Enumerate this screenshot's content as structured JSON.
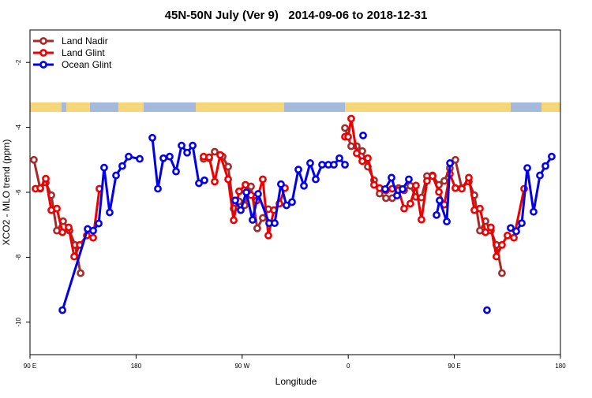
{
  "chart_data": {
    "type": "line",
    "title": "45N-50N July (Ver 9)   2014-09-06 to 2018-12-31",
    "x_label": "Longitude",
    "y_label": "XCO2 - MLO trend (ppm)",
    "xlim": [
      90,
      540
    ],
    "ylim": [
      -11,
      -1
    ],
    "xticks": [
      {
        "value": 90,
        "label": "90 E"
      },
      180,
      {
        "value": 270,
        "label": "90 W"
      },
      {
        "value": 360,
        "label": "0"
      },
      {
        "value": 450,
        "label": "90 E"
      },
      {
        "value": 540,
        "label": "180"
      }
    ],
    "yticks": [
      -10,
      -8,
      -6,
      -4,
      -2
    ],
    "legend": "top-left",
    "series": [
      {
        "name": "Land Nadir",
        "color": "#a52a2a",
        "x": [
          93.3,
          98.7,
          103.4,
          108.1,
          112.8,
          118.1,
          123.5,
          128.2,
          132.9,
          null,
          237.3,
          242.0,
          246.7,
          253.4,
          258.1,
          262.8,
          267.4,
          272.1,
          277.5,
          282.8,
          287.5,
          292.2,
          null,
          357.2,
          362.5,
          367.2,
          371.9,
          376.6,
          381.9,
          386.6,
          392.0,
          397.3,
          402.7,
          407.4,
          412.7,
          417.4,
          422.1,
          426.8,
          431.5,
          436.9,
          441.5,
          446.2,
          450.9,
          456.3,
          462.3,
          467.0,
          471.7,
          476.4,
          481.0,
          485.7,
          490.4
        ],
        "values": [
          -5.0,
          -5.89,
          -5.7,
          -6.09,
          -7.18,
          -6.89,
          -7.18,
          -7.62,
          -8.49,
          null,
          -4.97,
          -4.95,
          -4.75,
          -4.9,
          -5.21,
          -6.5,
          -6.28,
          -6.4,
          -5.82,
          -7.11,
          -6.79,
          -6.52,
          null,
          -4.02,
          -4.58,
          -4.58,
          -4.73,
          -5.21,
          -5.63,
          -6.04,
          -6.18,
          -6.18,
          -5.87,
          -5.94,
          -5.8,
          -6.14,
          -6.16,
          -5.5,
          -5.48,
          -5.77,
          -5.65,
          -5.26,
          -5.0,
          -5.87,
          -5.67,
          -6.09,
          -7.18,
          -6.89,
          -7.18,
          -7.62,
          -8.49
        ]
      },
      {
        "name": "Land Glint",
        "color": "#ee0000",
        "x": [
          94.7,
          98.7,
          103.4,
          108.1,
          112.8,
          117.5,
          122.8,
          127.5,
          132.2,
          138.2,
          143.6,
          148.9,
          null,
          237.3,
          242.0,
          246.7,
          251.4,
          258.1,
          262.8,
          267.4,
          272.8,
          277.5,
          282.2,
          287.5,
          292.2,
          296.9,
          301.6,
          306.3,
          null,
          357.2,
          359.9,
          362.5,
          367.2,
          371.9,
          376.6,
          381.9,
          386.6,
          392.0,
          397.3,
          402.7,
          407.4,
          412.7,
          417.4,
          422.1,
          426.8,
          431.5,
          436.9,
          441.5,
          446.2,
          450.9,
          456.3,
          462.3,
          467.0,
          471.7,
          476.4,
          481.0,
          485.7,
          490.4,
          495.1,
          500.5,
          509.2
        ],
        "values": [
          -5.89,
          -5.87,
          -5.58,
          -6.55,
          -6.5,
          -7.23,
          -7.08,
          -7.98,
          -7.62,
          -7.33,
          -7.4,
          -5.89,
          null,
          -4.9,
          -4.92,
          -5.67,
          -4.85,
          -5.6,
          -6.86,
          -5.97,
          -5.77,
          -6.09,
          -6.26,
          -5.6,
          -7.33,
          -6.55,
          -6.35,
          -5.87,
          null,
          -4.29,
          -4.29,
          -3.73,
          -4.8,
          -5.04,
          -4.95,
          -5.77,
          -5.87,
          -5.94,
          -5.89,
          -5.94,
          -6.5,
          -6.35,
          -5.79,
          -6.84,
          -5.65,
          -5.5,
          -5.99,
          -6.38,
          -5.43,
          -5.87,
          -5.89,
          -5.55,
          -6.55,
          -6.5,
          -7.23,
          -7.08,
          -7.98,
          -7.62,
          -7.33,
          -7.4,
          -5.89
        ]
      },
      {
        "name": "Ocean Glint",
        "color": "#0000ee",
        "x": [
          117.5,
          138.9,
          143.6,
          148.3,
          152.9,
          157.6,
          163.0,
          168.3,
          173.7,
          183.1,
          null,
          193.8,
          198.5,
          203.2,
          208.5,
          213.9,
          218.6,
          223.3,
          228.0,
          233.3,
          238.0,
          null,
          264.1,
          268.8,
          273.5,
          278.8,
          283.5,
          292.9,
          297.6,
          302.9,
          307.6,
          312.3,
          317.7,
          322.4,
          327.7,
          332.4,
          337.8,
          343.1,
          347.8,
          352.5,
          357.2,
          null,
          372.6,
          null,
          391.3,
          396.7,
          401.4,
          406.1,
          411.4,
          null,
          434.9,
          437.5,
          443.6,
          446.3,
          null,
          477.7,
          null,
          497.8,
          502.5,
          507.2,
          511.9,
          517.2,
          522.6,
          527.3,
          532.6
        ],
        "values": [
          -9.63,
          -7.13,
          -7.18,
          -6.96,
          -5.24,
          -6.62,
          -5.48,
          -5.19,
          -4.9,
          -4.97,
          null,
          -4.32,
          -5.89,
          -4.95,
          -4.9,
          -5.36,
          -4.56,
          -4.78,
          -4.56,
          -5.72,
          -5.63,
          null,
          -6.25,
          -6.55,
          -6.0,
          -6.85,
          -6.05,
          -6.95,
          -6.95,
          -5.75,
          -6.4,
          -6.3,
          -5.3,
          -5.8,
          -5.1,
          -5.6,
          -5.15,
          -5.15,
          -5.15,
          -4.95,
          -5.15,
          null,
          -4.25,
          null,
          -5.9,
          -5.55,
          -6.1,
          -5.9,
          -5.6,
          null,
          -6.7,
          -6.25,
          -6.9,
          -5.1,
          null,
          -9.63,
          null,
          -7.1,
          -7.2,
          -6.95,
          -5.25,
          -6.6,
          -5.48,
          -5.19,
          -4.9
        ]
      }
    ]
  }
}
